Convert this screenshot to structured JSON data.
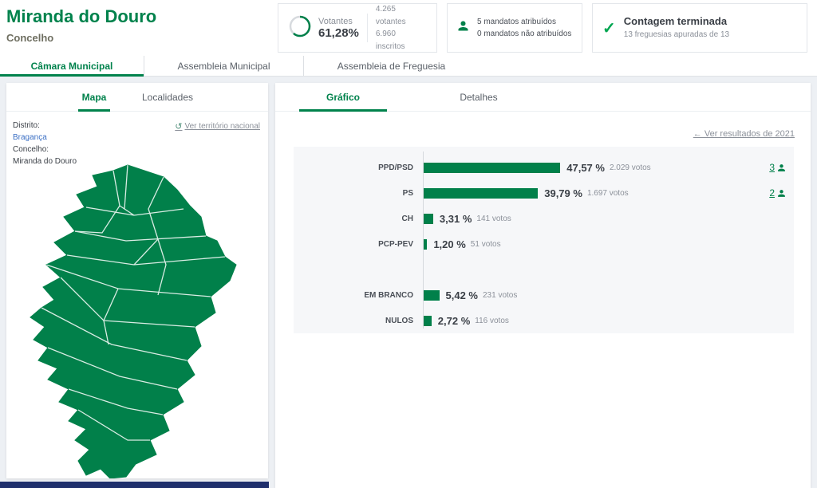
{
  "page": {
    "title": "Miranda do Douro",
    "subtitle": "Concelho"
  },
  "stats": {
    "votantes": {
      "label": "Votantes",
      "percent": "61,28%",
      "line1": "4.265 votantes",
      "line2": "6.960 inscritos"
    },
    "mandatos": {
      "line1": "5 mandatos atribuídos",
      "line2": "0 mandatos não atribuídos"
    },
    "contagem": {
      "title": "Contagem terminada",
      "subtitle": "13 freguesias apuradas de 13"
    }
  },
  "main_tabs": [
    {
      "label": "Câmara Municipal",
      "active": true
    },
    {
      "label": "Assembleia Municipal",
      "active": false
    },
    {
      "label": "Assembleia de Freguesia",
      "active": false
    }
  ],
  "map_panel": {
    "tabs": [
      "Mapa",
      "Localidades"
    ],
    "territorio_link": "Ver território nacional",
    "distrito_label": "Distrito:",
    "distrito_value": "Bragança",
    "concelho_label": "Concelho:",
    "concelho_value": "Miranda do Douro"
  },
  "results_panel": {
    "tabs": [
      "Gráfico",
      "Detalhes"
    ],
    "back_link": "← Ver resultados de 2021"
  },
  "chart_data": {
    "type": "bar",
    "orientation": "horizontal",
    "unit": "percent",
    "bar_color": "#01804a",
    "xlim": [
      0,
      50
    ],
    "series": [
      {
        "label": "PPD/PSD",
        "percent": "47,57 %",
        "value": 47.57,
        "votes": "2.029 votos",
        "mandates": "3",
        "gap_before": false
      },
      {
        "label": "PS",
        "percent": "39,79 %",
        "value": 39.79,
        "votes": "1.697 votos",
        "mandates": "2",
        "gap_before": false
      },
      {
        "label": "CH",
        "percent": "3,31 %",
        "value": 3.31,
        "votes": "141 votos",
        "mandates": null,
        "gap_before": false
      },
      {
        "label": "PCP-PEV",
        "percent": "1,20 %",
        "value": 1.2,
        "votes": "51 votos",
        "mandates": null,
        "gap_before": false
      },
      {
        "label": "EM BRANCO",
        "percent": "5,42 %",
        "value": 5.42,
        "votes": "231 votos",
        "mandates": null,
        "gap_before": true
      },
      {
        "label": "NULOS",
        "percent": "2,72 %",
        "value": 2.72,
        "votes": "116 votos",
        "mandates": null,
        "gap_before": false
      }
    ]
  },
  "colors": {
    "accent_green": "#00824c",
    "bar_green": "#01804a",
    "check_green": "#00a651",
    "footer_navy": "#1f2f6c",
    "link_blue": "#3b6fc4",
    "muted_gray": "#8b9099"
  }
}
